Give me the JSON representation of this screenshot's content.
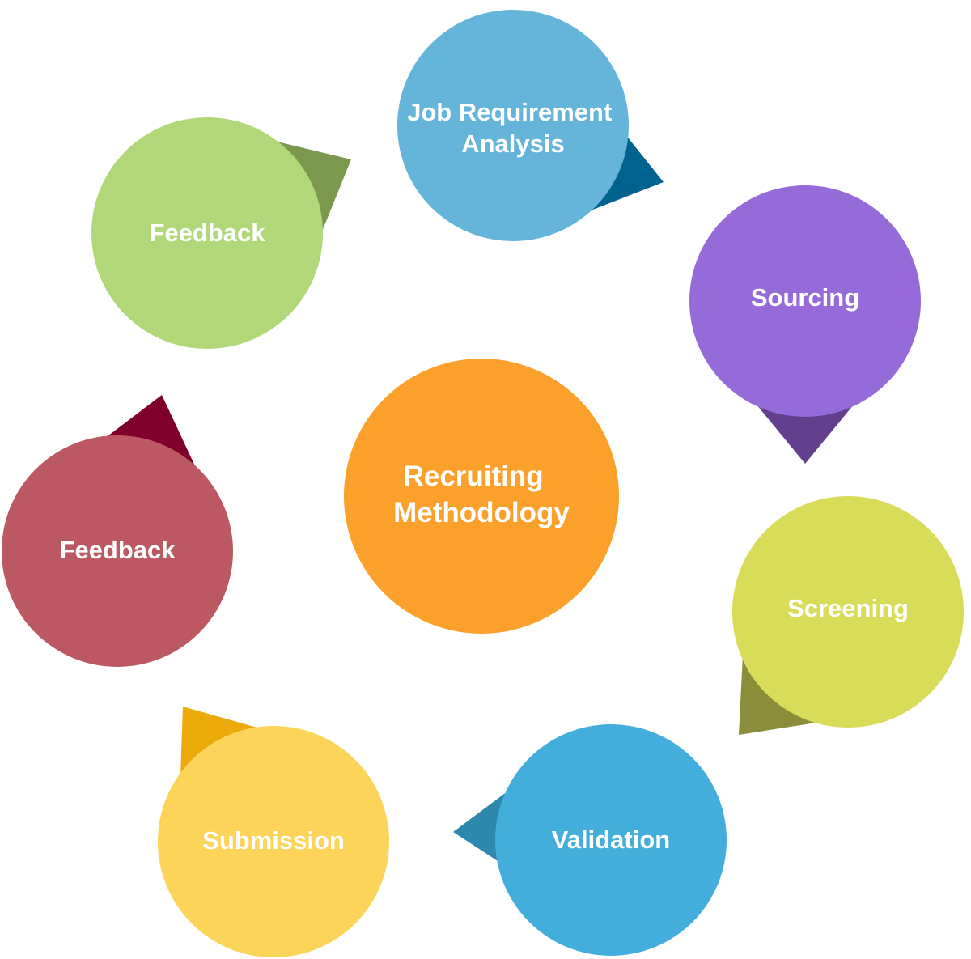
{
  "diagram": {
    "center": {
      "lines": [
        "Recruiting",
        "Methodology"
      ],
      "color": "#FBA02B"
    },
    "steps": [
      {
        "id": "job-requirement-analysis",
        "lines": [
          "Job Requirement",
          "Analysis"
        ],
        "color": "#65B5DB",
        "pointer_color": "#00628F"
      },
      {
        "id": "sourcing",
        "lines": [
          "Sourcing"
        ],
        "color": "#966AD9",
        "pointer_color": "#643F8E"
      },
      {
        "id": "screening",
        "lines": [
          "Screening"
        ],
        "color": "#D8DC58",
        "pointer_color": "#8C8D3A"
      },
      {
        "id": "validation",
        "lines": [
          "Validation"
        ],
        "color": "#43ADDB",
        "pointer_color": "#2E88AE"
      },
      {
        "id": "submission",
        "lines": [
          "Submission"
        ],
        "color": "#FCD45A",
        "pointer_color": "#EBA90A"
      },
      {
        "id": "feedback-red",
        "lines": [
          "Feedback"
        ],
        "color": "#BC5862",
        "pointer_color": "#80002C"
      },
      {
        "id": "feedback-green",
        "lines": [
          "Feedback"
        ],
        "color": "#B0D878",
        "pointer_color": "#7B984F"
      }
    ]
  }
}
